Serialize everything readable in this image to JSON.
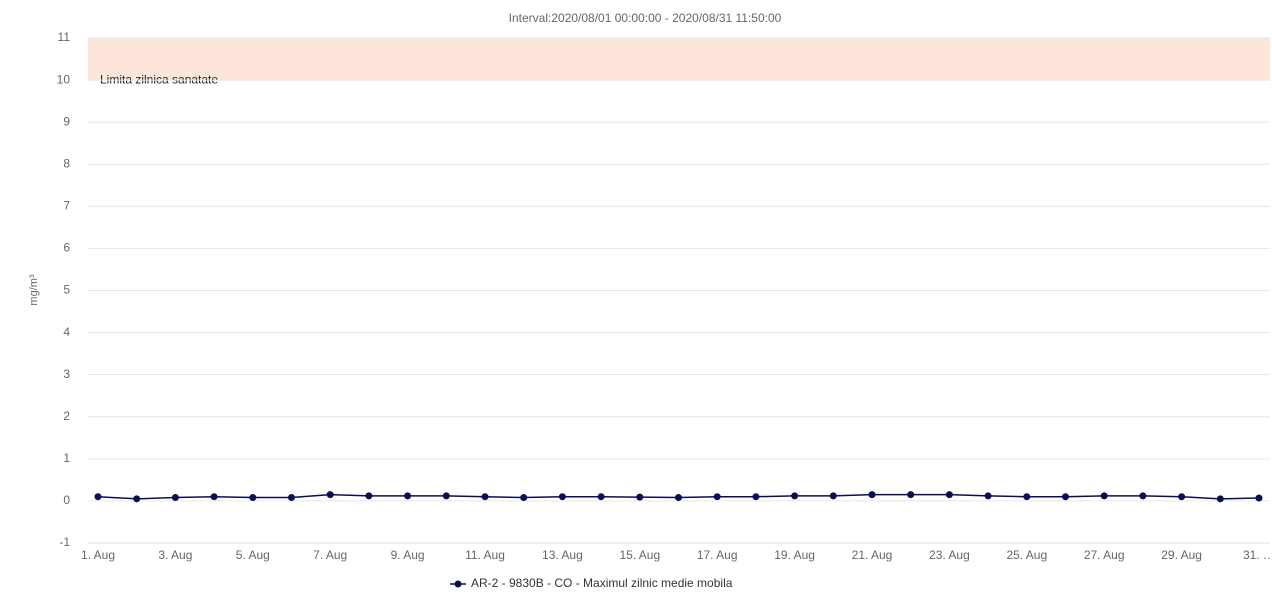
{
  "chart_data": {
    "type": "line",
    "title": "Interval:2020/08/01 00:00:00 - 2020/08/31 11:50:00",
    "y_label": "mg/m³",
    "categories": [
      "1. Aug",
      null,
      "3. Aug",
      null,
      "5. Aug",
      null,
      "7. Aug",
      null,
      "9. Aug",
      null,
      "11. Aug",
      null,
      "13. Aug",
      null,
      "15. Aug",
      null,
      "17. Aug",
      null,
      "19. Aug",
      null,
      "21. Aug",
      null,
      "23. Aug",
      null,
      "25. Aug",
      null,
      "27. Aug",
      null,
      "29. Aug",
      null,
      "31. …"
    ],
    "series": [
      {
        "name": "AR-2 - 9830B - CO - Maximul zilnic medie mobila",
        "color": "#0c0f4f",
        "values": [
          0.1,
          0.05,
          0.08,
          0.1,
          0.08,
          0.08,
          0.15,
          0.12,
          0.12,
          0.12,
          0.1,
          0.08,
          0.1,
          0.1,
          0.09,
          0.08,
          0.1,
          0.1,
          0.12,
          0.12,
          0.15,
          0.15,
          0.15,
          0.12,
          0.1,
          0.1,
          0.12,
          0.12,
          0.1,
          0.05,
          0.07
        ]
      }
    ],
    "ylim": [
      -1,
      11
    ],
    "yticks": [
      -1,
      0,
      1,
      2,
      3,
      4,
      5,
      6,
      7,
      8,
      9,
      10,
      11
    ],
    "grid": true,
    "plot_bands": [
      {
        "from": 10,
        "to": 11,
        "label": "Limita zilnica sanatate",
        "color": "#fde5d9"
      }
    ],
    "legend": "bottom"
  }
}
